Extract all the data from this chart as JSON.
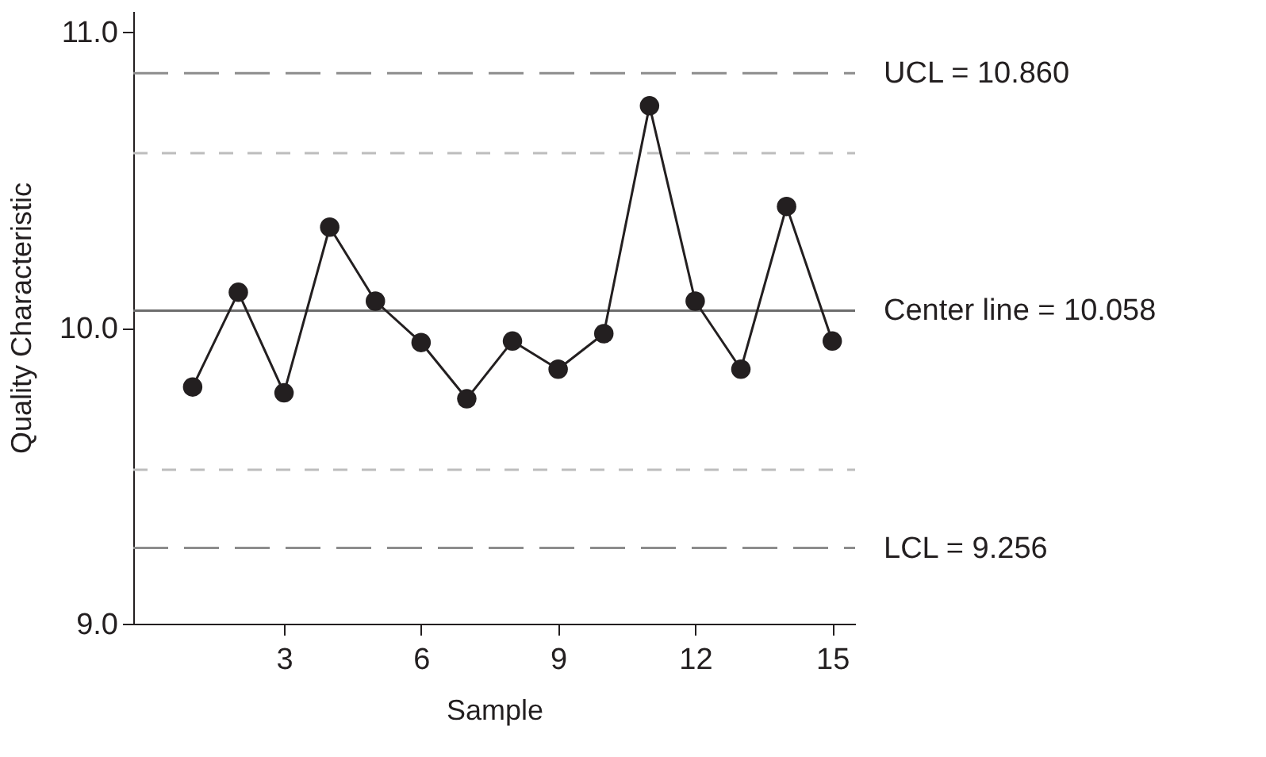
{
  "chart_data": {
    "type": "line",
    "xlabel": "Sample",
    "ylabel": "Quality Characteristic",
    "x": [
      1,
      2,
      3,
      4,
      5,
      6,
      7,
      8,
      9,
      10,
      11,
      12,
      13,
      14,
      15
    ],
    "series": [
      {
        "color": "#231f20",
        "values": [
          9.8,
          10.12,
          9.78,
          10.34,
          10.09,
          9.95,
          9.76,
          9.955,
          9.86,
          9.98,
          10.75,
          10.09,
          9.86,
          10.41,
          9.955
        ]
      }
    ],
    "marker": "circle",
    "line_style": "solid",
    "xlim": [
      -0.3,
      15.5
    ],
    "xticks": [
      3,
      6,
      9,
      12,
      15
    ],
    "ylim": [
      9.0,
      11.07
    ],
    "yticks": [
      {
        "value": 9,
        "label": "9.0"
      },
      {
        "value": 10,
        "label": "10.0"
      },
      {
        "value": 11,
        "label": "11.0"
      }
    ],
    "grid": false,
    "ref_lines": [
      {
        "axis": "y",
        "value": 10.86,
        "label": "UCL = 10.860",
        "color": "#8c8c8c",
        "line_style": "dashed"
      },
      {
        "axis": "y",
        "value": 10.59,
        "label": null,
        "color": "#bdbdbd",
        "line_style": "dotted"
      },
      {
        "axis": "y",
        "value": 10.058,
        "label": "Center line = 10.058",
        "color": "#6d6d6d",
        "line_style": "solid"
      },
      {
        "axis": "y",
        "value": 9.52,
        "label": null,
        "color": "#bdbdbd",
        "line_style": "dotted"
      },
      {
        "axis": "y",
        "value": 9.256,
        "label": "LCL = 9.256",
        "color": "#8c8c8c",
        "line_style": "dashed"
      }
    ]
  }
}
